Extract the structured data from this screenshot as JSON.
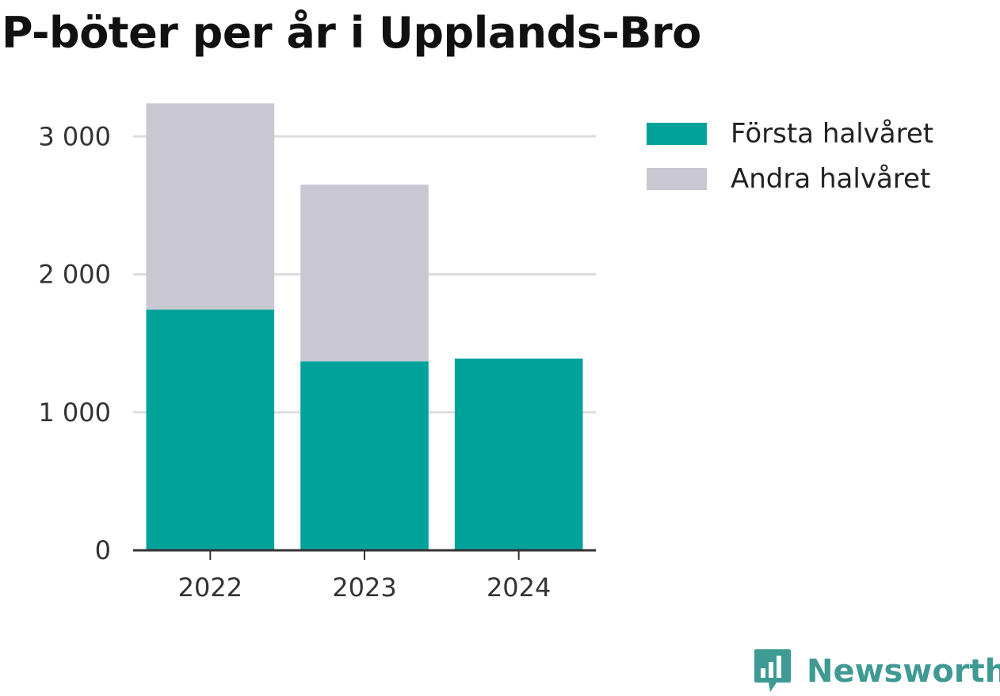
{
  "title": "P-böter per år i Upplands-Bro",
  "colors": {
    "first_half": "#00a39a",
    "second_half": "#c8c7d2",
    "grid": "#dddddd",
    "axis": "#333333",
    "brand": "#3e9a93"
  },
  "legend": [
    {
      "label": "Första halvåret",
      "color": "#00a39a"
    },
    {
      "label": "Andra halvåret",
      "color": "#c8c7d2"
    }
  ],
  "brand": {
    "label": "Newsworthy",
    "icon": "newsworthy-logo-icon"
  },
  "chart_data": {
    "type": "bar",
    "stacked": true,
    "categories": [
      "2022",
      "2023",
      "2024"
    ],
    "series": [
      {
        "name": "Första halvåret",
        "values": [
          1745,
          1370,
          1390
        ]
      },
      {
        "name": "Andra halvåret",
        "values": [
          1495,
          1280,
          0
        ]
      }
    ],
    "y_ticks": [
      0,
      1000,
      2000,
      3000
    ],
    "y_tick_labels": [
      "0",
      "1 000",
      "2 000",
      "3 000"
    ],
    "ylim": [
      0,
      3300
    ],
    "grid": true,
    "legend_position": "top-right",
    "xlabel": "",
    "ylabel": ""
  }
}
